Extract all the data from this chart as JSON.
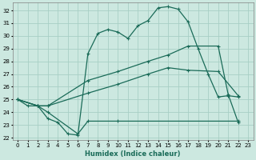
{
  "xlabel": "Humidex (Indice chaleur)",
  "xlim": [
    -0.5,
    23.5
  ],
  "ylim": [
    21.8,
    32.6
  ],
  "yticks": [
    22,
    23,
    24,
    25,
    26,
    27,
    28,
    29,
    30,
    31,
    32
  ],
  "xticks": [
    0,
    1,
    2,
    3,
    4,
    5,
    6,
    7,
    8,
    9,
    10,
    11,
    12,
    13,
    14,
    15,
    16,
    17,
    18,
    19,
    20,
    21,
    22,
    23
  ],
  "background_color": "#cce8e0",
  "grid_color": "#a8cfc5",
  "line_color": "#1a6b58",
  "line1_x": [
    0,
    1,
    2,
    3,
    4,
    5,
    6,
    7,
    8,
    9,
    10,
    11,
    12,
    13,
    14,
    15,
    16,
    17,
    18,
    19,
    20,
    21,
    22
  ],
  "line1_y": [
    25,
    24.5,
    24.5,
    23.5,
    23.2,
    22.3,
    22.2,
    28.6,
    30.2,
    30.5,
    30.3,
    29.8,
    30.8,
    31.2,
    32.2,
    32.3,
    32.1,
    31.1,
    29.0,
    27.0,
    25.2,
    25.3,
    25.2
  ],
  "line2_x": [
    0,
    2,
    3,
    7,
    10,
    13,
    15,
    17,
    20,
    21,
    22
  ],
  "line2_y": [
    25,
    24.5,
    24.5,
    26.5,
    27.2,
    28.0,
    28.5,
    29.2,
    29.2,
    25.4,
    23.2
  ],
  "line3_x": [
    0,
    2,
    3,
    7,
    10,
    13,
    15,
    17,
    20,
    22
  ],
  "line3_y": [
    25,
    24.5,
    24.5,
    25.5,
    26.2,
    27.0,
    27.5,
    27.3,
    27.2,
    25.3
  ],
  "line4_x": [
    0,
    2,
    3,
    6,
    7,
    10,
    22
  ],
  "line4_y": [
    25,
    24.5,
    24.0,
    22.3,
    23.3,
    23.3,
    23.3
  ]
}
